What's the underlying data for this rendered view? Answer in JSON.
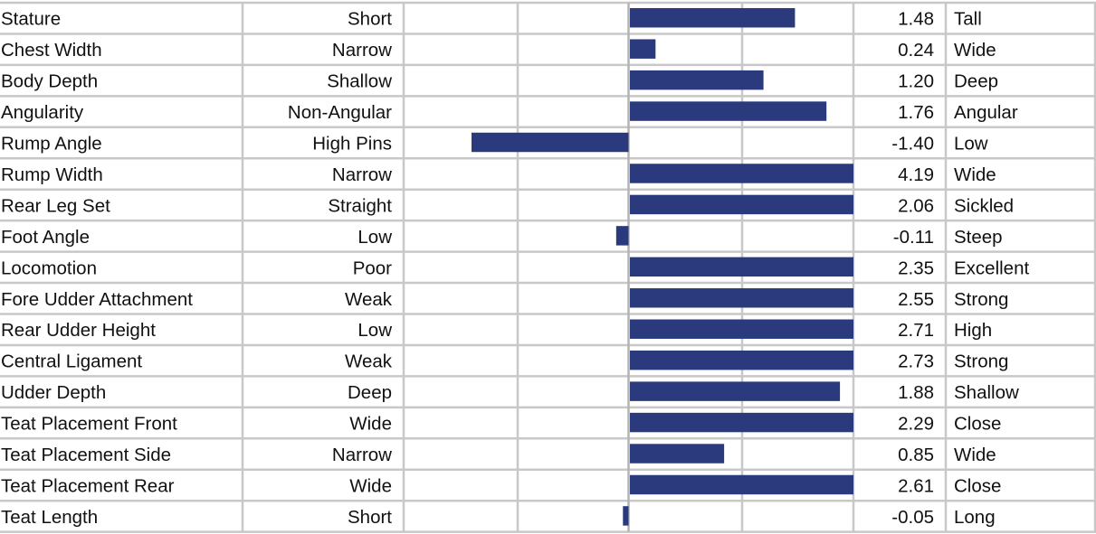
{
  "chart_data": {
    "type": "bar",
    "orientation": "horizontal",
    "traits": [
      "Stature",
      "Chest Width",
      "Body Depth",
      "Angularity",
      "Rump Angle",
      "Rump Width",
      "Rear Leg Set",
      "Foot Angle",
      "Locomotion",
      "Fore Udder Attachment",
      "Rear Udder Height",
      "Central Ligament",
      "Udder Depth",
      "Teat Placement Front",
      "Teat Placement Side",
      "Teat Placement Rear",
      "Teat Length"
    ],
    "low_labels": [
      "Short",
      "Narrow",
      "Shallow",
      "Non-Angular",
      "High Pins",
      "Narrow",
      "Straight",
      "Low",
      "Poor",
      "Weak",
      "Low",
      "Weak",
      "Deep",
      "Wide",
      "Narrow",
      "Wide",
      "Short"
    ],
    "high_labels": [
      "Tall",
      "Wide",
      "Deep",
      "Angular",
      "Low",
      "Wide",
      "Sickled",
      "Steep",
      "Excellent",
      "Strong",
      "High",
      "Strong",
      "Shallow",
      "Close",
      "Wide",
      "Close",
      "Long"
    ],
    "values": [
      1.48,
      0.24,
      1.2,
      1.76,
      -1.4,
      4.19,
      2.06,
      -0.11,
      2.35,
      2.55,
      2.71,
      2.73,
      1.88,
      2.29,
      0.85,
      2.61,
      -0.05
    ],
    "value_labels": [
      "1.48",
      "0.24",
      "1.20",
      "1.76",
      "-1.40",
      "4.19",
      "2.06",
      "-0.11",
      "2.35",
      "2.55",
      "2.71",
      "2.73",
      "1.88",
      "2.29",
      "0.85",
      "2.61",
      "-0.05"
    ],
    "xlim": [
      -2,
      2
    ],
    "grid": true,
    "bar_color": "#2a3a7c",
    "grid_color": "#c8c8c8"
  }
}
